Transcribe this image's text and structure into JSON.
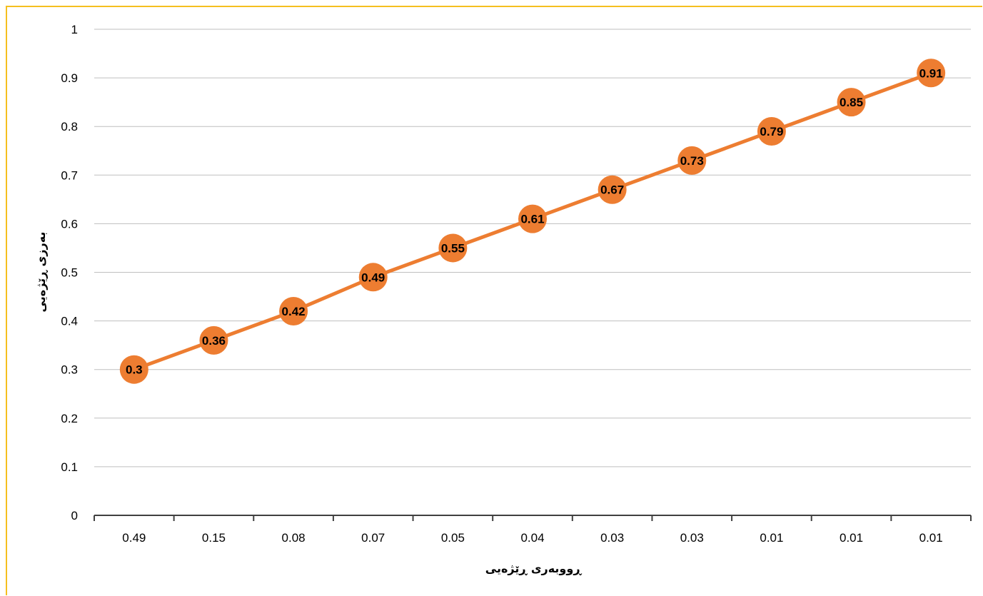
{
  "chart_data": {
    "type": "line",
    "title": "",
    "xlabel": "ڕووبەری ڕێژەیی",
    "ylabel": "بەرزی ڕێژەیی",
    "categories": [
      "0.49",
      "0.15",
      "0.08",
      "0.07",
      "0.05",
      "0.04",
      "0.03",
      "0.03",
      "0.01",
      "0.01",
      "0.01"
    ],
    "series": [
      {
        "values": [
          0.3,
          0.36,
          0.42,
          0.49,
          0.55,
          0.61,
          0.67,
          0.73,
          0.79,
          0.85,
          0.91
        ]
      }
    ],
    "data_labels": [
      "0.3",
      "0.36",
      "0.42",
      "0.49",
      "0.55",
      "0.61",
      "0.67",
      "0.73",
      "0.79",
      "0.85",
      "0.91"
    ],
    "ylim": [
      0,
      1
    ],
    "y_ticks": [
      0,
      0.1,
      0.2,
      0.3,
      0.4,
      0.5,
      0.6,
      0.7,
      0.8,
      0.9,
      1
    ],
    "y_tick_labels": [
      "0",
      "0.1",
      "0.2",
      "0.3",
      "0.4",
      "0.5",
      "0.6",
      "0.7",
      "0.8",
      "0.9",
      "1"
    ],
    "grid": true,
    "legend": "none",
    "colors": {
      "series": "#ed7d31",
      "gridline": "#bfbfbf",
      "axis": "#404040",
      "frame_border": "#f5bf1f"
    }
  }
}
